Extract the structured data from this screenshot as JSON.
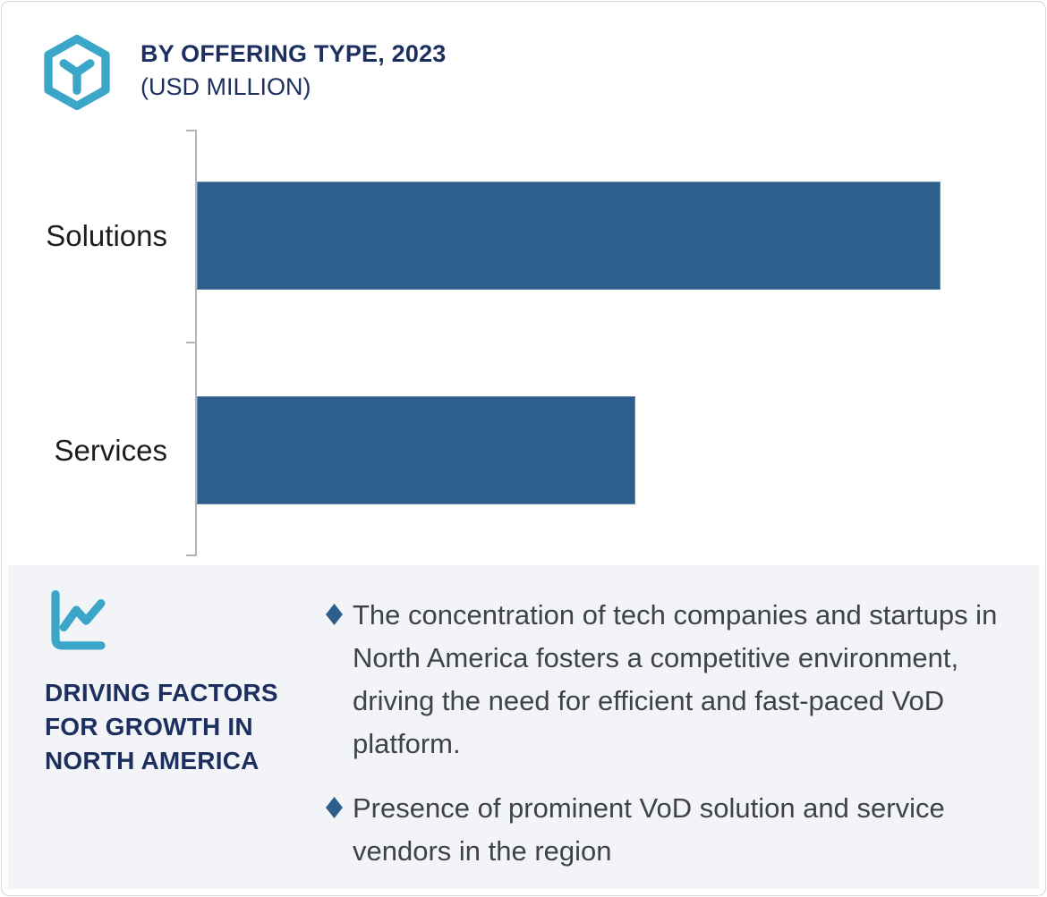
{
  "header": {
    "icon": "hexagon-box-icon",
    "title": "BY OFFERING TYPE, 2023",
    "subtitle": "(USD MILLION)"
  },
  "chart_data": {
    "type": "bar",
    "orientation": "horizontal",
    "title": "BY OFFERING TYPE, 2023 (USD MILLION)",
    "unit": "USD Million",
    "categories": [
      "Solutions",
      "Services"
    ],
    "values_relative_to_max_pct": [
      100,
      59
    ],
    "value_labels_shown": false,
    "axis_tick_labels_shown": false,
    "gridlines": false,
    "bar_color": "#2E5F8C",
    "axis_color": "#B3B6B9"
  },
  "panel": {
    "icon": "line-chart-icon",
    "heading": "DRIVING FACTORS FOR GROWTH IN NORTH AMERICA",
    "bullets": [
      "The concentration of tech companies and startups in North America fosters a competitive environment, driving the need for efficient and fast-paced VoD platform.",
      "Presence of prominent VoD solution and service vendors in the region"
    ]
  },
  "colors": {
    "accent_teal": "#3BA6C7",
    "navy": "#1C2F5E",
    "bar_blue": "#2E5F8C",
    "panel_background": "#F2F4F8",
    "axis_gray": "#B3B6B9",
    "body_text": "#3F4348",
    "card_border": "#D3D7DC"
  }
}
